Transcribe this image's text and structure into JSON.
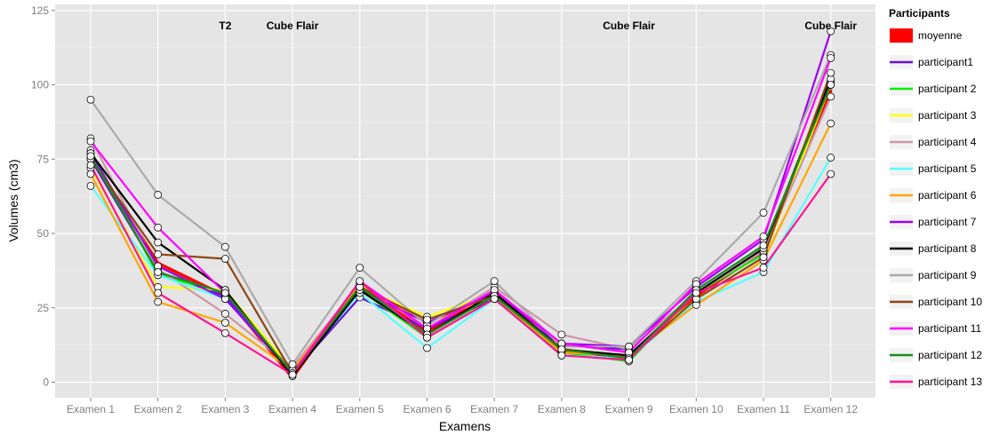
{
  "chart_data": {
    "type": "line",
    "xlabel": "Examens",
    "ylabel": "Volumes (cm3)",
    "ylim": [
      -3,
      125
    ],
    "y_ticks": [
      0,
      25,
      50,
      75,
      100,
      125
    ],
    "grid": true,
    "legend_title": "Participants",
    "legend_position": "right",
    "categories": [
      "Examen 1",
      "Examen 2",
      "Examen 3",
      "Examen 4",
      "Examen 5",
      "Examen 6",
      "Examen 7",
      "Examen 8",
      "Examen 9",
      "Examen 10",
      "Examen 11",
      "Examen 12"
    ],
    "annotations": [
      {
        "text": "T2",
        "x": "Examen 3"
      },
      {
        "text": "Cube Flair",
        "x": "Examen 4"
      },
      {
        "text": "Cube Flair",
        "x": "Examen 9"
      },
      {
        "text": "Cube Flair",
        "x": "Examen 12"
      }
    ],
    "series": [
      {
        "name": "moyenne",
        "color": "#ff0000",
        "values": [
          76,
          40,
          29,
          1.5,
          33,
          17,
          30,
          11,
          8,
          29,
          44,
          98
        ]
      },
      {
        "name": "participant1",
        "color": "#6a0dde",
        "values": [
          75,
          37,
          29,
          3,
          28.5,
          18,
          28,
          12.5,
          11,
          30,
          44,
          101
        ]
      },
      {
        "name": "participant 2",
        "color": "#00ee00",
        "values": [
          78,
          36,
          30,
          3,
          31,
          15,
          28,
          10,
          7,
          30,
          43,
          100
        ]
      },
      {
        "name": "participant 3",
        "color": "#ffff00",
        "values": [
          72,
          32,
          31,
          4,
          32,
          22,
          30,
          11,
          9,
          28,
          42,
          100
        ]
      },
      {
        "name": "participant 4",
        "color": "#cd96a6",
        "values": [
          82,
          38,
          23,
          5,
          33,
          18,
          32,
          16,
          11,
          30,
          44,
          96
        ]
      },
      {
        "name": "participant 5",
        "color": "#55ffff",
        "values": [
          66,
          36,
          28,
          3,
          30,
          11.5,
          28,
          9,
          8,
          27,
          37,
          75.5
        ]
      },
      {
        "name": "participant 6",
        "color": "#ffa500",
        "values": [
          70,
          27,
          20,
          4,
          33,
          20,
          29,
          10,
          9,
          26,
          41,
          87
        ]
      },
      {
        "name": "participant 7",
        "color": "#9b00ee",
        "values": [
          77,
          39,
          28,
          3,
          31,
          20,
          30,
          13,
          12,
          32,
          48,
          118
        ]
      },
      {
        "name": "participant 8",
        "color": "#000000",
        "values": [
          77,
          47,
          31,
          2,
          31,
          16,
          30,
          11,
          9,
          30,
          45,
          102
        ]
      },
      {
        "name": "participant 9",
        "color": "#aaaaaa",
        "values": [
          95,
          63,
          45.5,
          6,
          38.5,
          19,
          34,
          12,
          12,
          34,
          57,
          110
        ]
      },
      {
        "name": "participant 10",
        "color": "#8b4513",
        "values": [
          75,
          43,
          41.5,
          3,
          32,
          21,
          29,
          11,
          8,
          28,
          42,
          104
        ]
      },
      {
        "name": "participant 11",
        "color": "#ff00ff",
        "values": [
          81,
          52,
          30,
          3,
          34,
          18,
          31,
          13,
          10,
          33,
          49,
          109
        ]
      },
      {
        "name": "participant 12",
        "color": "#1a8c1a",
        "values": [
          76,
          37,
          30,
          3,
          32,
          16,
          29,
          11,
          8,
          31,
          46,
          100
        ]
      },
      {
        "name": "participant 13",
        "color": "#ff1493",
        "values": [
          73,
          30,
          16.5,
          2.5,
          34,
          15,
          28,
          9,
          7.5,
          30,
          38.5,
          70
        ]
      }
    ]
  }
}
